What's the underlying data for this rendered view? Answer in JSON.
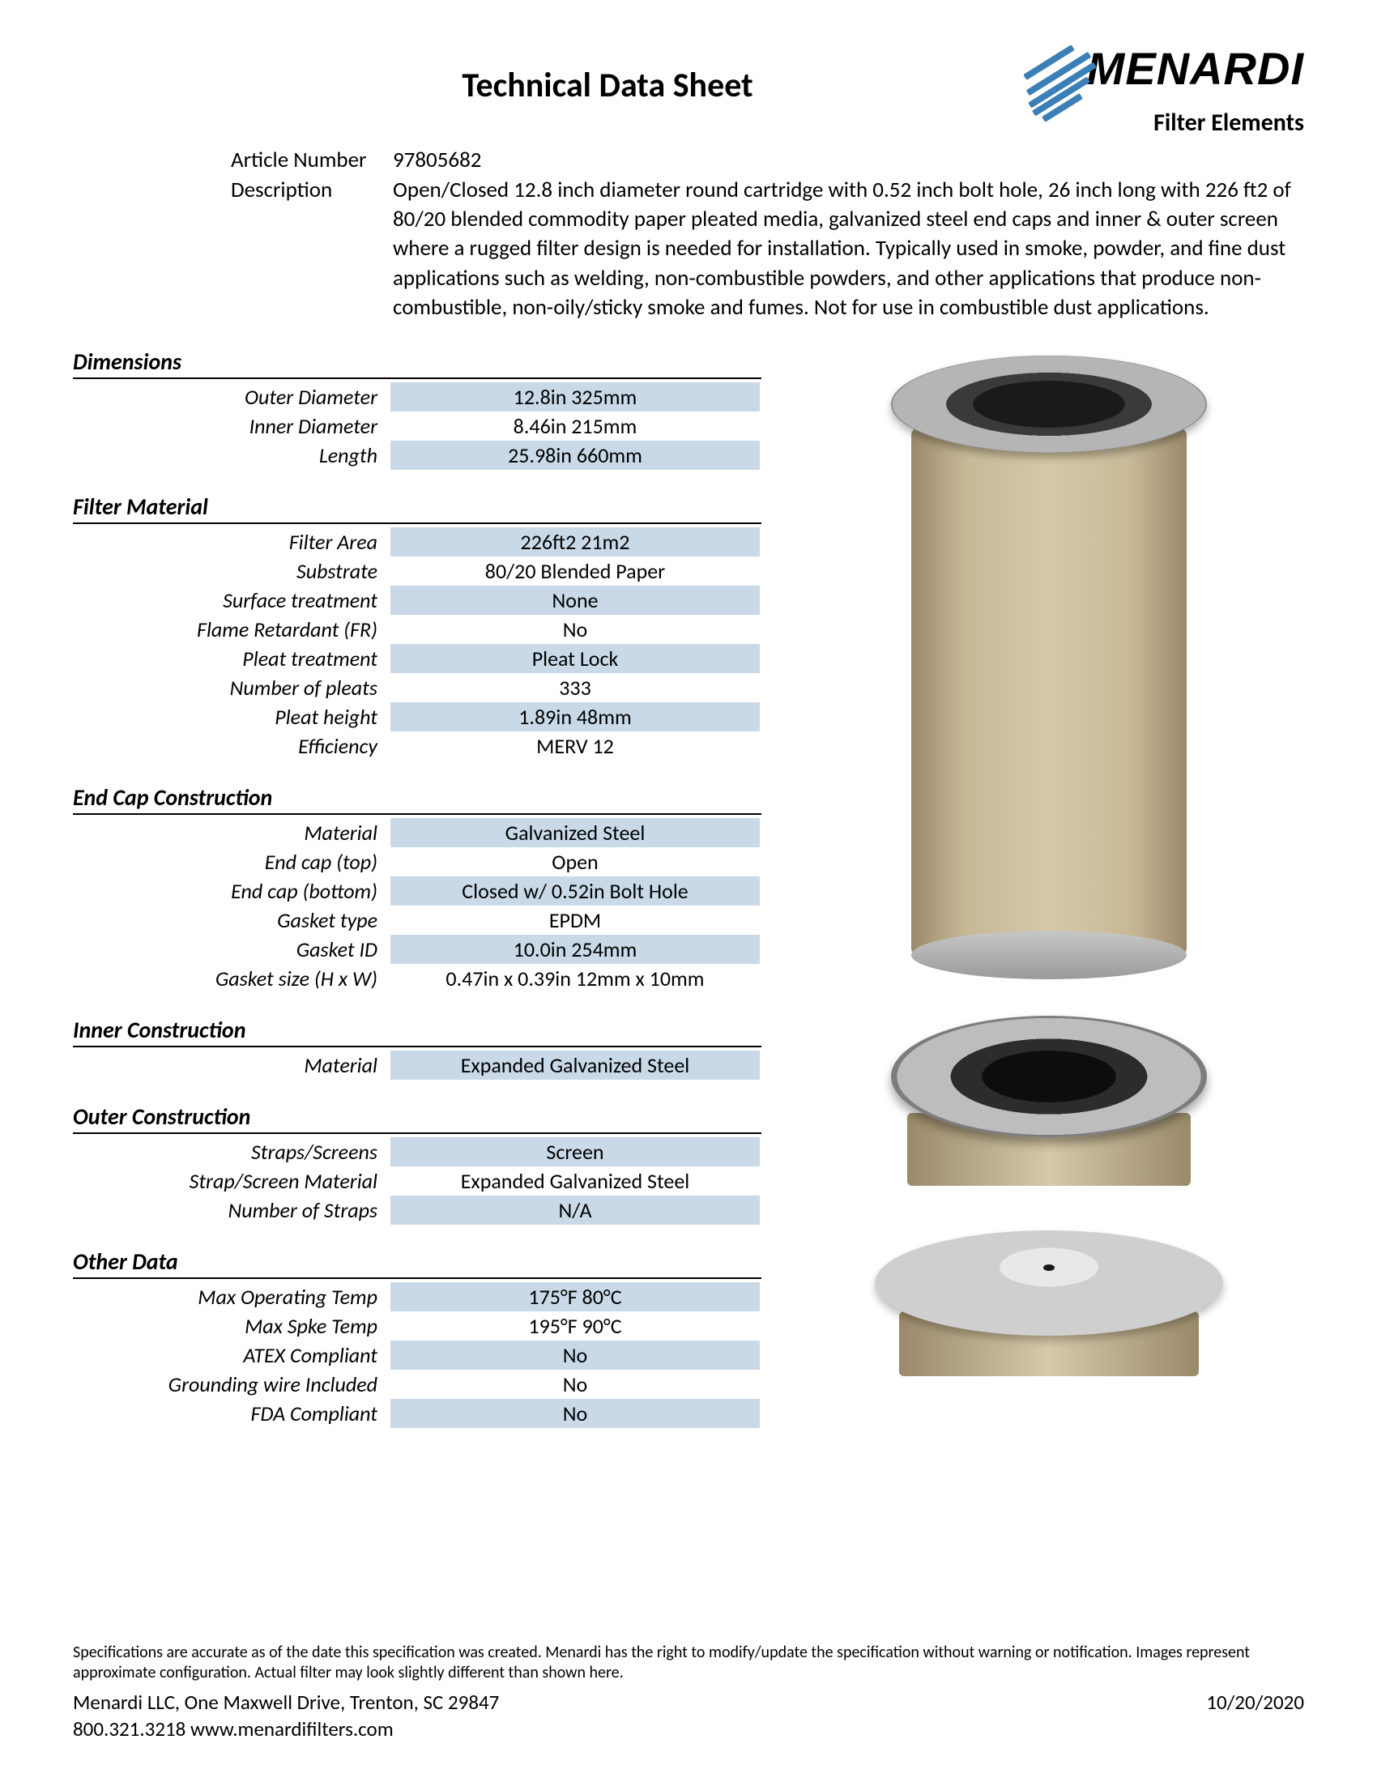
{
  "page": {
    "title": "Technical Data Sheet",
    "logo_main": "MENARDI",
    "logo_sub": "Filter Elements"
  },
  "meta": {
    "article_label": "Article Number",
    "article_value": "97805682",
    "description_label": "Description",
    "description_value": "Open/Closed 12.8 inch diameter round cartridge with 0.52 inch bolt hole, 26 inch long with 226 ft2 of 80/20 blended commodity paper pleated media, galvanized steel end caps and inner & outer screen where a rugged filter design is needed for installation. Typically used in smoke, powder, and fine dust applications such as welding, non-combustible powders, and other applications that produce non-combustible, non-oily/sticky smoke and fumes. Not for use in combustible dust applications."
  },
  "sections": {
    "dimensions": {
      "title": "Dimensions",
      "rows": [
        {
          "label": "Outer Diameter",
          "value": "12.8in  325mm",
          "shade": true
        },
        {
          "label": "Inner Diameter",
          "value": "8.46in  215mm",
          "shade": false
        },
        {
          "label": "Length",
          "value": "25.98in  660mm",
          "shade": true
        }
      ]
    },
    "filter_material": {
      "title": "Filter Material",
      "rows": [
        {
          "label": "Filter Area",
          "value": "226ft2  21m2",
          "shade": true
        },
        {
          "label": "Substrate",
          "value": "80/20 Blended Paper",
          "shade": false
        },
        {
          "label": "Surface treatment",
          "value": "None",
          "shade": true
        },
        {
          "label": "Flame Retardant (FR)",
          "value": "No",
          "shade": false
        },
        {
          "label": "Pleat treatment",
          "value": "Pleat Lock",
          "shade": true
        },
        {
          "label": "Number of pleats",
          "value": "333",
          "shade": false
        },
        {
          "label": "Pleat height",
          "value": "1.89in  48mm",
          "shade": true
        },
        {
          "label": "Efficiency",
          "value": "MERV 12",
          "shade": false
        }
      ]
    },
    "end_cap": {
      "title": "End Cap Construction",
      "rows": [
        {
          "label": "Material",
          "value": "Galvanized Steel",
          "shade": true
        },
        {
          "label": "End cap (top)",
          "value": "Open",
          "shade": false
        },
        {
          "label": "End cap (bottom)",
          "value": "Closed w/ 0.52in Bolt Hole",
          "shade": true
        },
        {
          "label": "Gasket type",
          "value": "EPDM",
          "shade": false
        },
        {
          "label": "Gasket ID",
          "value": "10.0in  254mm",
          "shade": true
        },
        {
          "label": "Gasket  size (H x W)",
          "value": "0.47in x 0.39in  12mm x 10mm",
          "shade": false
        }
      ]
    },
    "inner": {
      "title": "Inner Construction",
      "rows": [
        {
          "label": "Material",
          "value": "Expanded Galvanized Steel",
          "shade": true
        }
      ]
    },
    "outer": {
      "title": "Outer Construction",
      "rows": [
        {
          "label": "Straps/Screens",
          "value": "Screen",
          "shade": true
        },
        {
          "label": "Strap/Screen Material",
          "value": "Expanded Galvanized Steel",
          "shade": false
        },
        {
          "label": "Number of Straps",
          "value": "N/A",
          "shade": true
        }
      ]
    },
    "other": {
      "title": "Other Data",
      "rows": [
        {
          "label": "Max Operating Temp",
          "value": "175°F  80°C",
          "shade": true
        },
        {
          "label": "Max Spke Temp",
          "value": "195°F  90°C",
          "shade": false
        },
        {
          "label": "ATEX Compliant",
          "value": "No",
          "shade": true
        },
        {
          "label": "Grounding wire Included",
          "value": "No",
          "shade": false
        },
        {
          "label": "FDA Compliant",
          "value": "No",
          "shade": true
        }
      ]
    }
  },
  "footer": {
    "disclaimer": "Specifications are accurate as of the date this specification was created.  Menardi has the right to modify/update the specification without warning or notification.  Images represent approximate configuration.  Actual filter may look slightly different than shown here.",
    "address": "Menardi LLC, One Maxwell Drive, Trenton, SC 29847",
    "contact": "800.321.3218     www.menardifilters.com",
    "date": "10/20/2020"
  },
  "style": {
    "shade_color": "#c9d9e8",
    "border_color": "#000000",
    "font_body_pt": 26,
    "font_title_pt": 42
  }
}
